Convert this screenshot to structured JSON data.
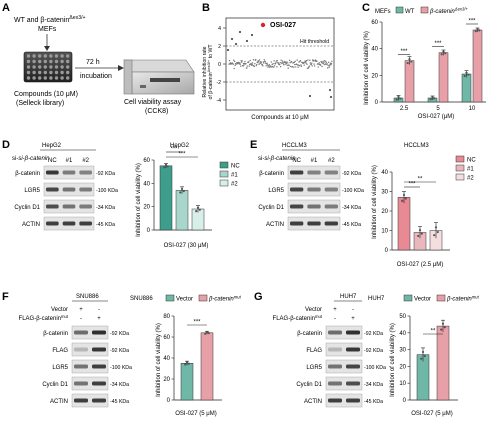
{
  "figure": {
    "panels": {
      "A": {
        "letter": "A",
        "cells_line1": "WT and β-catenin",
        "cells_sup": "Δex3/+",
        "cells_line2": "MEFs",
        "time": "72 h",
        "incubation": "incubation",
        "compounds_line1": "Compounds (10 μM)",
        "compounds_line2": "(Selleck library)",
        "assay_line1": "Cell viability assay",
        "assay_line2": "(CCK8)"
      },
      "B": {
        "letter": "B",
        "ylabel_line1": "Relative inhibition rate",
        "ylabel_line2": "of β-catenin",
        "ylabel_sup": "Δex3/+",
        "ylabel_tail": " to WT",
        "xlabel": "Compounds at 10 μM",
        "highlight_label": "OSI-027",
        "threshold_label": "Hit threshold",
        "highlight_color": "#d62728",
        "ticks": [
          "4",
          "2",
          "0",
          "-2",
          "-4"
        ]
      },
      "C": {
        "letter": "C",
        "legend": [
          "MEFs",
          "WT",
          "β-catenin",
          "Δex3/+"
        ],
        "ylabel": "Inhibition of cell viability (%)",
        "xlabel": "OSI-027 (μM)",
        "ticks": [
          "0",
          "20",
          "40",
          "60"
        ],
        "categories": [
          "2.5",
          "5",
          "10"
        ],
        "sig": [
          "***",
          "***",
          "***"
        ]
      },
      "D": {
        "letter": "D",
        "cell": "HepG2",
        "si": "si-β-catenin",
        "lanes": [
          "NC",
          "#1",
          "#2"
        ],
        "blots": [
          "β-catenin",
          "LGR5",
          "Cyclin D1",
          "ACTIN"
        ],
        "kda": [
          "-92 KDa",
          "-100 KDa",
          "-34 KDa",
          "-45 KDa"
        ],
        "chart_title": "HepG2",
        "legend": [
          "NC",
          "#1",
          "#2"
        ],
        "ylabel": "Inhibition of cell viability (%)",
        "ticks": [
          "0",
          "20",
          "40",
          "60"
        ],
        "xlabel": "OSI-027 (30 μM)",
        "sig": [
          "***",
          "***"
        ]
      },
      "E": {
        "letter": "E",
        "cell": "HCCLM3",
        "si": "si-β-catenin",
        "lanes": [
          "NC",
          "#1",
          "#2"
        ],
        "blots": [
          "β-catenin",
          "LGR5",
          "Cyclin D1",
          "ACTIN"
        ],
        "kda": [
          "-92 KDa",
          "-100 KDa",
          "-34 KDa",
          "-45 KDa"
        ],
        "chart_title": "HCCLM3",
        "legend": [
          "NC",
          "#1",
          "#2"
        ],
        "ylabel": "Inhibition of cell viability (%)",
        "ticks": [
          "0",
          "10",
          "20",
          "30",
          "40"
        ],
        "xlabel": "OSI-027 (2.5 μM)",
        "sig": [
          "**",
          "***"
        ]
      },
      "F": {
        "letter": "F",
        "cell": "SNU886",
        "row1": "Vector",
        "row2": "FLAG-β-catenin",
        "row2_sup": "mut",
        "signs1": [
          "+",
          "-"
        ],
        "signs2": [
          "-",
          "+"
        ],
        "blots": [
          "β-catenin",
          "FLAG",
          "LGR5",
          "Cyclin D1",
          "ACTIN"
        ],
        "kda": [
          "-92 KDa",
          "-92 KDa",
          "-100 KDa",
          "-34 KDa",
          "-45 KDa"
        ],
        "chart_title": "SNU886",
        "legend": [
          "Vector",
          "β-catenin",
          "mut"
        ],
        "ylabel": "Inhibition of cell viability (%)",
        "ticks": [
          "0",
          "20",
          "40",
          "60",
          "80"
        ],
        "xlabel": "OSI-027 (5 μM)",
        "sig": "***"
      },
      "G": {
        "letter": "G",
        "cell": "HUH7",
        "row1": "Vector",
        "row2": "FLAG-β-catenin",
        "row2_sup": "mut",
        "signs1": [
          "+",
          "-"
        ],
        "signs2": [
          "-",
          "+"
        ],
        "blots": [
          "β-catenin",
          "FLAG",
          "LGR5",
          "Cyclin D1",
          "ACTIN"
        ],
        "kda": [
          "-92 KDa",
          "-92 KDa",
          "-100 KDa",
          "-34 KDa",
          "-45 KDa"
        ],
        "chart_title": "HUH7",
        "legend": [
          "Vector",
          "β-catenin",
          "mut"
        ],
        "ylabel": "Inhibition of cell viability (%)",
        "ticks": [
          "0",
          "10",
          "20",
          "30",
          "40",
          "50"
        ],
        "xlabel": "OSI-027 (5 μM)",
        "sig": "**"
      }
    },
    "colors": {
      "wt": "#6fb7a6",
      "mut": "#e8a0a8",
      "nc": "#e88a93",
      "si1": "#eab8bc",
      "si2": "#f5dee0",
      "nc_d": "#3d9e8b",
      "si1_d": "#a8d6cb",
      "si2_d": "#d8efe9"
    }
  },
  "chart_data": [
    {
      "type": "bar",
      "panel": "C",
      "categories": [
        "2.5",
        "5",
        "10"
      ],
      "series": [
        {
          "name": "WT",
          "values": [
            3,
            3,
            21
          ]
        },
        {
          "name": "β-catenin Δex3/+",
          "values": [
            31,
            37,
            54
          ]
        }
      ],
      "ylim": [
        0,
        60
      ]
    },
    {
      "type": "bar",
      "panel": "D",
      "categories": [
        "NC",
        "#1",
        "#2"
      ],
      "values": [
        55,
        34,
        18
      ],
      "ylim": [
        0,
        60
      ]
    },
    {
      "type": "bar",
      "panel": "E",
      "categories": [
        "NC",
        "#1",
        "#2"
      ],
      "values": [
        27,
        9,
        10
      ],
      "ylim": [
        0,
        40
      ]
    },
    {
      "type": "bar",
      "panel": "F",
      "categories": [
        "Vector",
        "β-catenin mut"
      ],
      "values": [
        35,
        64
      ],
      "ylim": [
        0,
        80
      ]
    },
    {
      "type": "bar",
      "panel": "G",
      "categories": [
        "Vector",
        "β-catenin mut"
      ],
      "values": [
        27,
        44
      ],
      "ylim": [
        0,
        50
      ]
    }
  ]
}
